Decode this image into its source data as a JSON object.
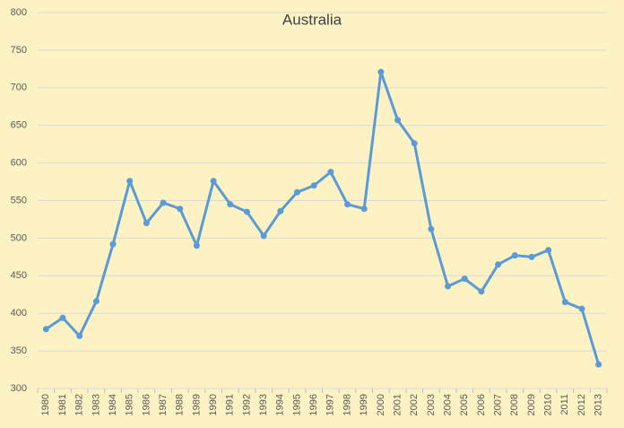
{
  "chart_data": {
    "type": "line",
    "title": "Australia",
    "categories": [
      "1980",
      "1981",
      "1982",
      "1983",
      "1984",
      "1985",
      "1986",
      "1987",
      "1988",
      "1989",
      "1990",
      "1991",
      "1992",
      "1993",
      "1994",
      "1995",
      "1996",
      "1997",
      "1998",
      "1999",
      "2000",
      "2001",
      "2002",
      "2003",
      "2004",
      "2005",
      "2006",
      "2007",
      "2008",
      "2009",
      "2010",
      "2011",
      "2012",
      "2013"
    ],
    "series": [
      {
        "name": "Australia",
        "color": "#5b9bd5",
        "values": [
          379,
          394,
          370,
          416,
          492,
          576,
          520,
          547,
          539,
          490,
          576,
          545,
          535,
          503,
          536,
          561,
          570,
          588,
          545,
          539,
          721,
          657,
          626,
          512,
          436,
          446,
          429,
          465,
          477,
          475,
          484,
          415,
          406,
          332
        ]
      }
    ],
    "ylim": [
      300,
      800
    ],
    "yticks": [
      300,
      350,
      400,
      450,
      500,
      550,
      600,
      650,
      700,
      750,
      800
    ],
    "grid": true
  }
}
